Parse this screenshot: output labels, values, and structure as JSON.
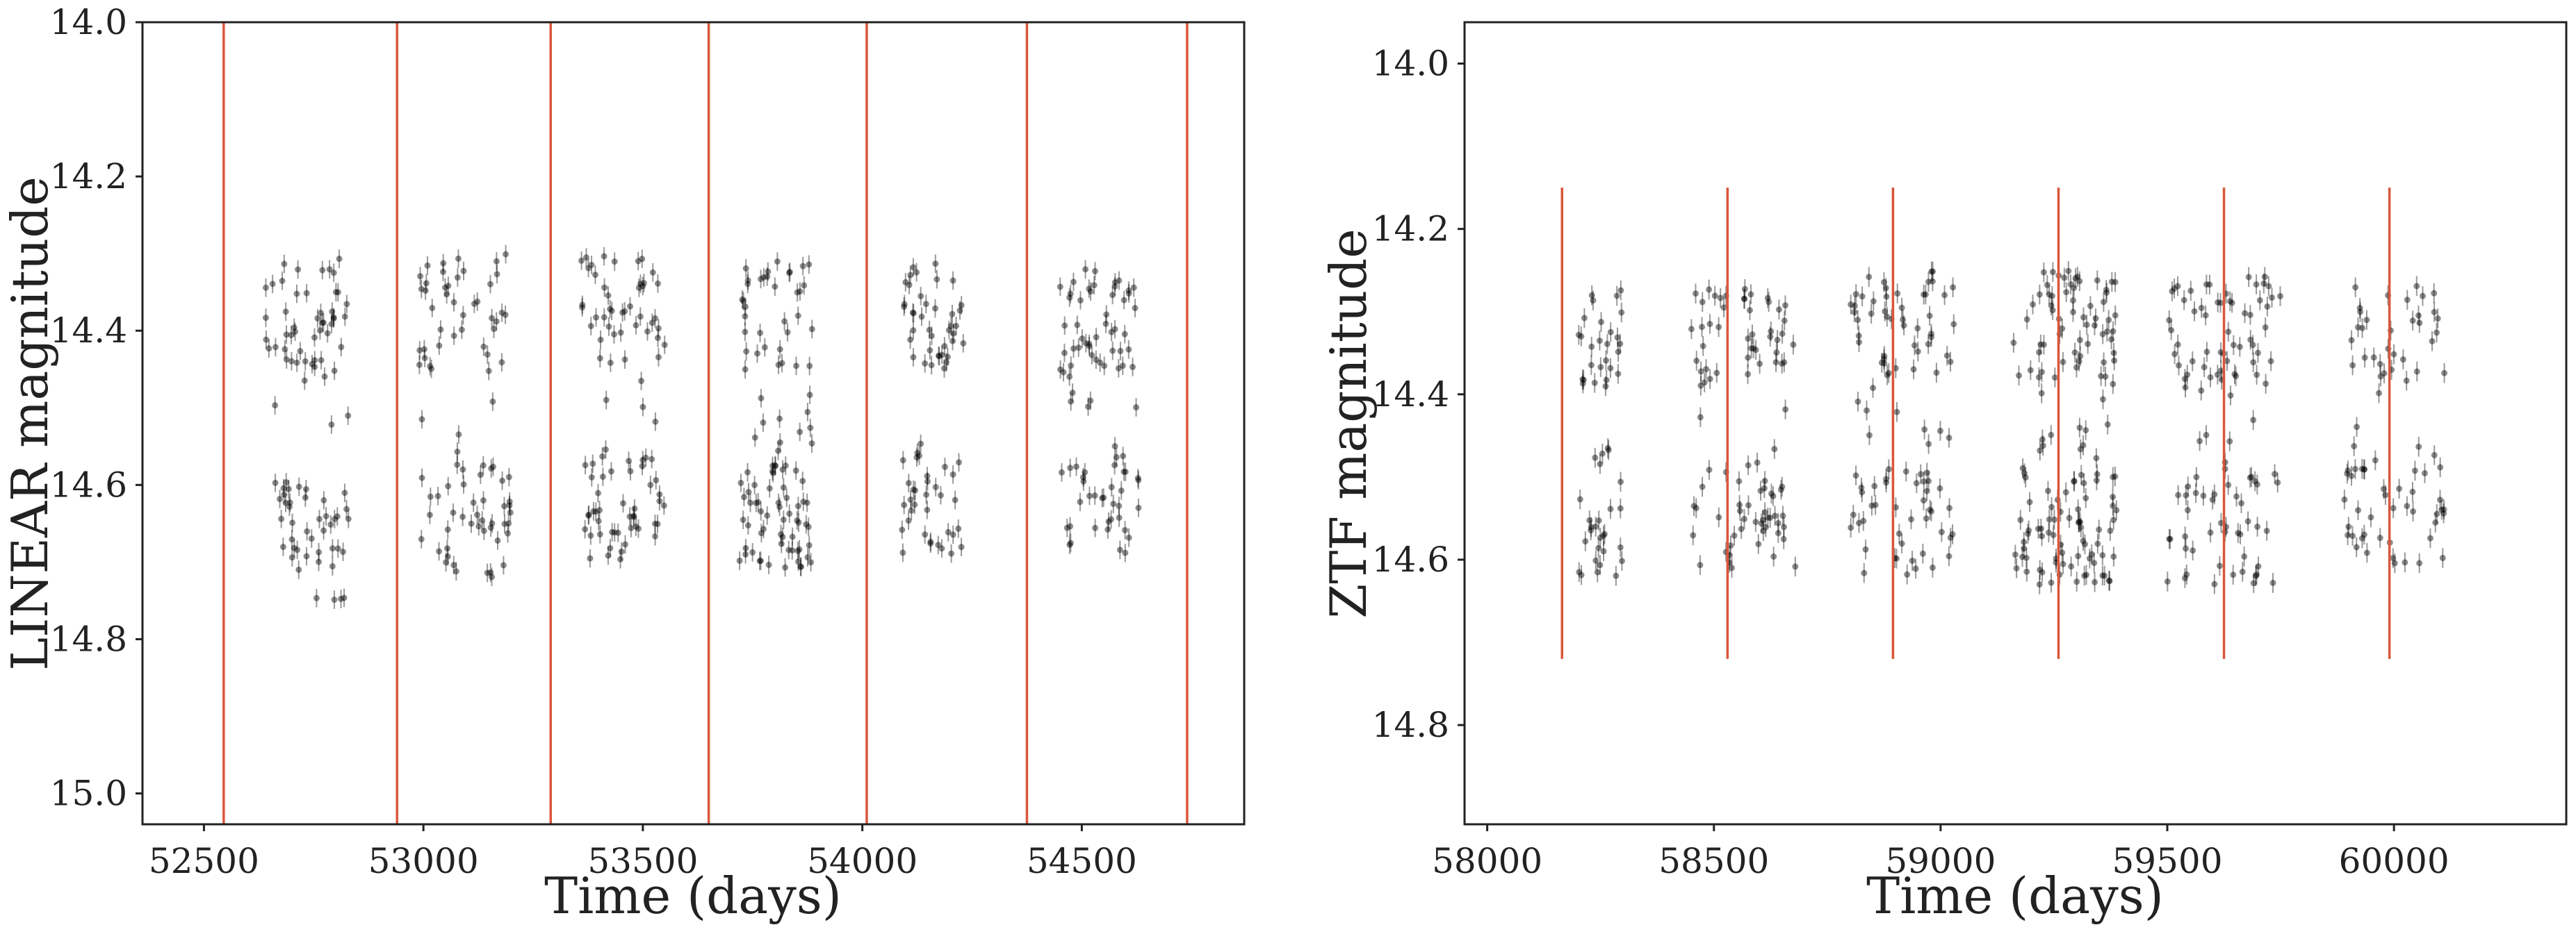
{
  "colors": {
    "points": "#000000",
    "vlines": "#d9573a",
    "axes": "#222222"
  },
  "chart_data": [
    {
      "id": "linear",
      "type": "scatter",
      "xlabel": "Time (days)",
      "ylabel": "LINEAR magnitude",
      "xlim": [
        52360,
        54870
      ],
      "ylim": [
        15.04,
        14.0
      ],
      "y_inverted": true,
      "xticks": [
        52500,
        53000,
        53500,
        54000,
        54500
      ],
      "xtick_labels": [
        "52500",
        "53000",
        "53500",
        "54000",
        "54500"
      ],
      "yticks": [
        14.0,
        14.2,
        14.4,
        14.6,
        14.8,
        15.0
      ],
      "ytick_labels": [
        "14.0",
        "14.2",
        "14.4",
        "14.6",
        "14.8",
        "15.0"
      ],
      "grid": false,
      "vlines": {
        "x": [
          52545,
          52940,
          53290,
          53650,
          54010,
          54375,
          54740
        ],
        "y_range": [
          15.04,
          14.0
        ]
      },
      "clusters": [
        {
          "x_range": [
            52640,
            52830
          ],
          "y_range": [
            14.3,
            14.75
          ],
          "n": 95
        },
        {
          "x_range": [
            52990,
            53200
          ],
          "y_range": [
            14.3,
            14.72
          ],
          "n": 90
        },
        {
          "x_range": [
            53360,
            53550
          ],
          "y_range": [
            14.3,
            14.7
          ],
          "n": 95
        },
        {
          "x_range": [
            53720,
            53890
          ],
          "y_range": [
            14.31,
            14.71
          ],
          "n": 105
        },
        {
          "x_range": [
            54090,
            54230
          ],
          "y_range": [
            14.31,
            14.69
          ],
          "n": 75
        },
        {
          "x_range": [
            54450,
            54630
          ],
          "y_range": [
            14.32,
            14.69
          ],
          "n": 90
        }
      ],
      "error_bar_mag": 0.012
    },
    {
      "id": "ztf",
      "type": "scatter",
      "xlabel": "Time (days)",
      "ylabel": "ZTF magnitude",
      "xlim": [
        57950,
        60380
      ],
      "ylim": [
        14.92,
        13.95
      ],
      "y_inverted": true,
      "xticks": [
        58000,
        58500,
        59000,
        59500,
        60000
      ],
      "xtick_labels": [
        "58000",
        "58500",
        "59000",
        "59500",
        "60000"
      ],
      "yticks": [
        14.0,
        14.2,
        14.4,
        14.6,
        14.8
      ],
      "ytick_labels": [
        "14.0",
        "14.2",
        "14.4",
        "14.6",
        "14.8"
      ],
      "grid": false,
      "vlines": {
        "x": [
          58165,
          58530,
          58895,
          59260,
          59625,
          59990
        ],
        "y_range": [
          14.72,
          14.15
        ]
      },
      "clusters": [
        {
          "x_range": [
            58200,
            58300
          ],
          "y_range": [
            14.27,
            14.62
          ],
          "n": 55
        },
        {
          "x_range": [
            58450,
            58680
          ],
          "y_range": [
            14.27,
            14.61
          ],
          "n": 95
        },
        {
          "x_range": [
            58800,
            59030
          ],
          "y_range": [
            14.25,
            14.62
          ],
          "n": 100
        },
        {
          "x_range": [
            59160,
            59390
          ],
          "y_range": [
            14.25,
            14.63
          ],
          "n": 150
        },
        {
          "x_range": [
            59500,
            59750
          ],
          "y_range": [
            14.25,
            14.63
          ],
          "n": 110
        },
        {
          "x_range": [
            59890,
            60120
          ],
          "y_range": [
            14.26,
            14.61
          ],
          "n": 80
        }
      ],
      "error_bar_mag": 0.012
    }
  ]
}
